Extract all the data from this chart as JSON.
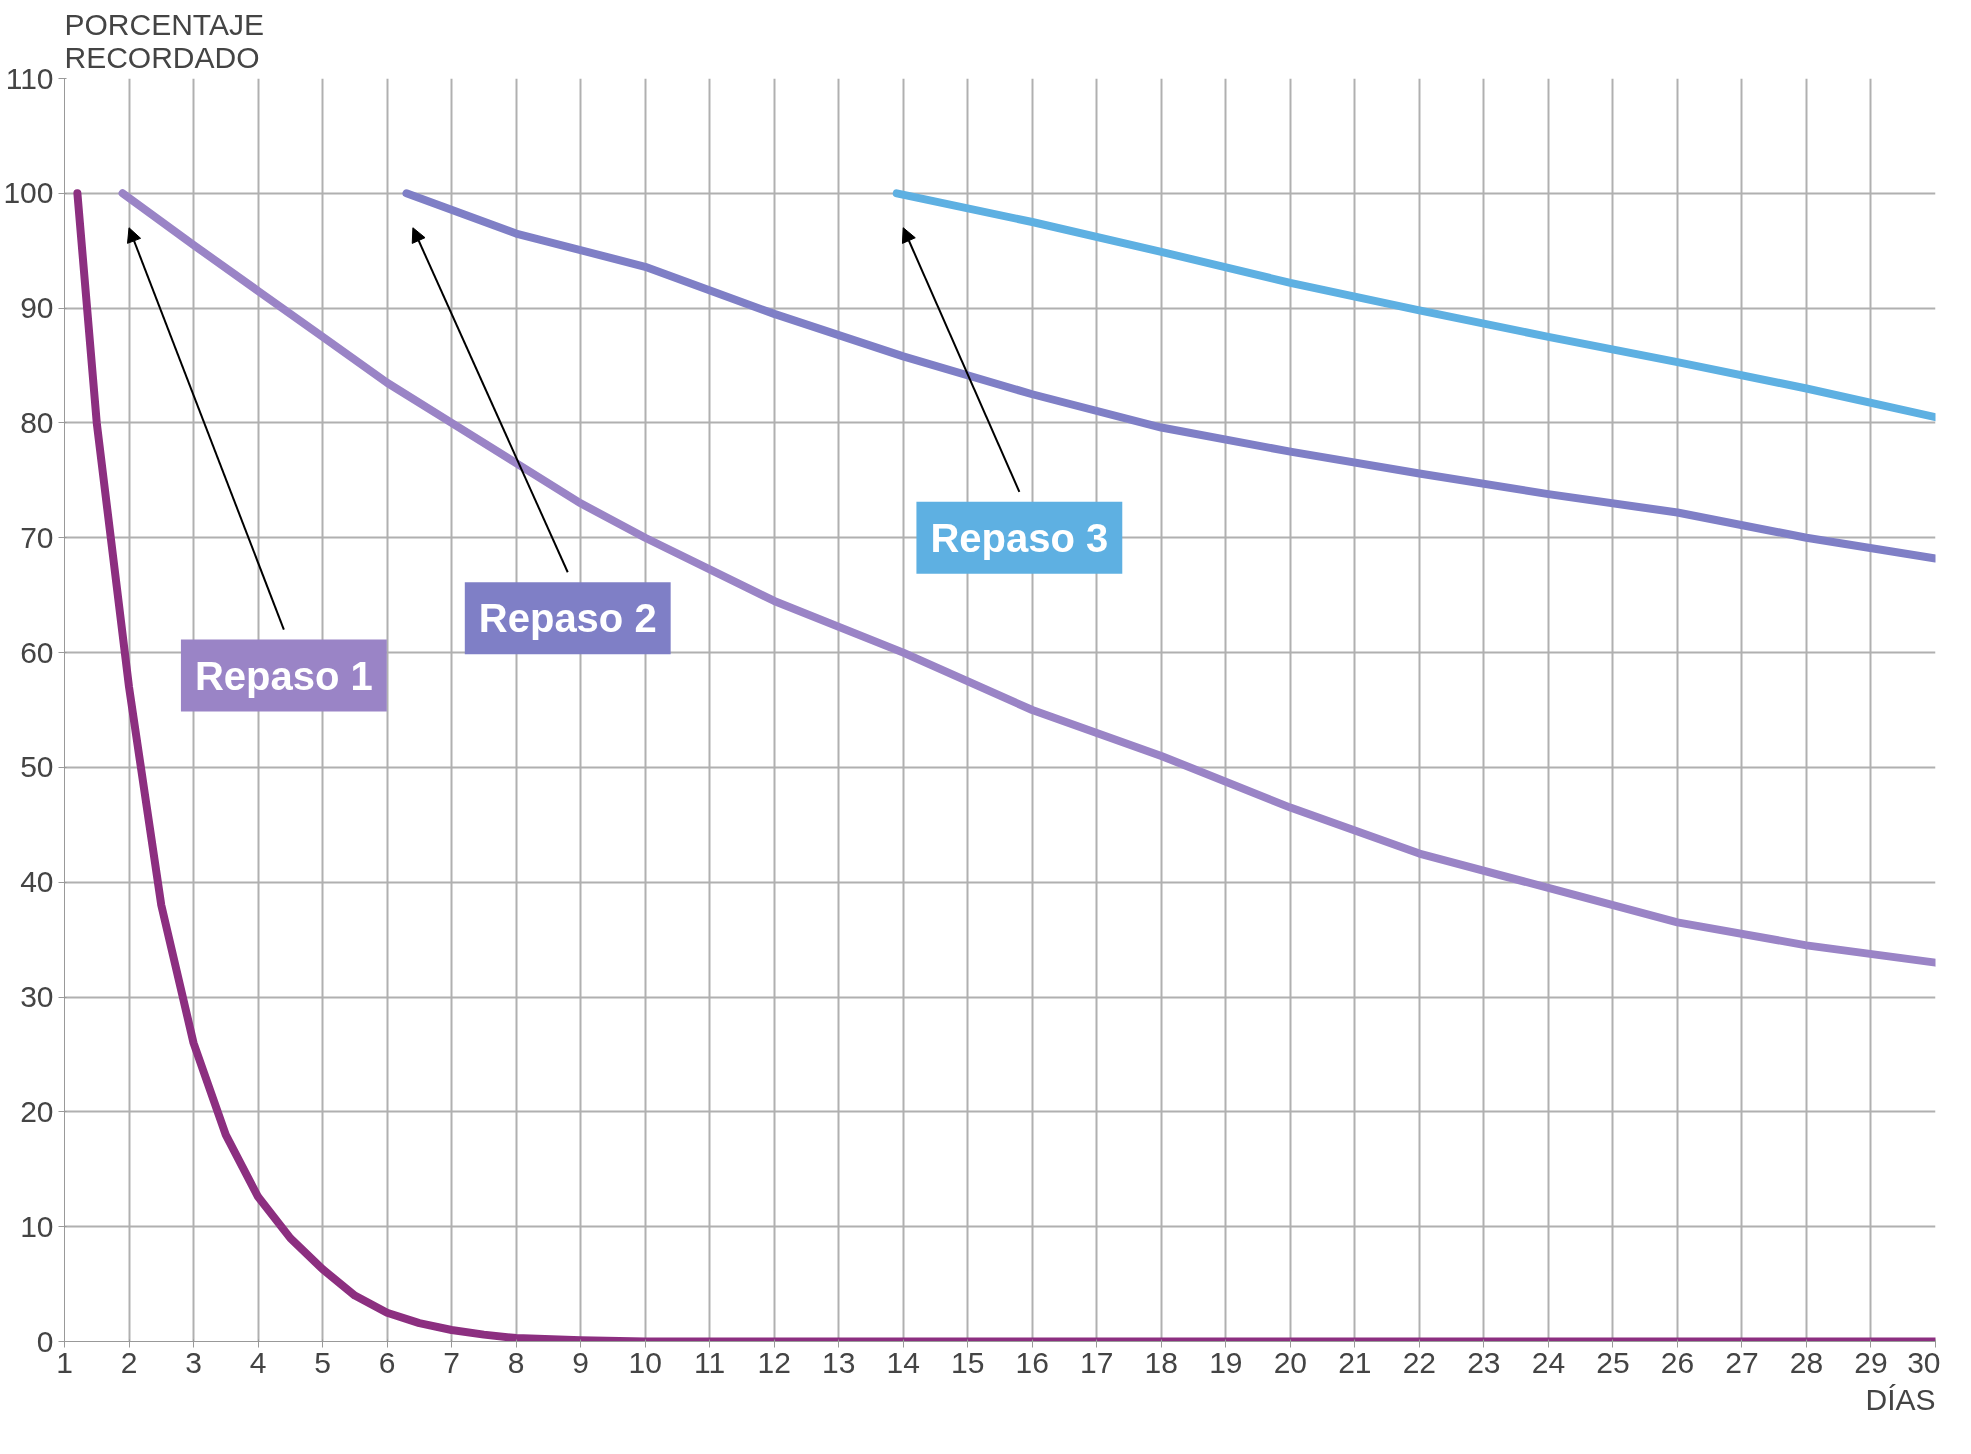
{
  "chart_data": {
    "type": "line",
    "xlabel": "DÍAS",
    "ylabel": "PORCENTAJE RECORDADO",
    "xlim": [
      1,
      30
    ],
    "ylim": [
      0,
      110
    ],
    "xticks": [
      1,
      2,
      3,
      4,
      5,
      6,
      7,
      8,
      9,
      10,
      11,
      12,
      13,
      14,
      15,
      16,
      17,
      18,
      19,
      20,
      21,
      22,
      23,
      24,
      25,
      26,
      27,
      28,
      29,
      30
    ],
    "yticks": [
      0,
      10,
      20,
      30,
      40,
      50,
      60,
      70,
      80,
      90,
      100,
      110
    ],
    "grid": true,
    "marker": "none",
    "line_style": "solid",
    "series": [
      {
        "color": "#8c2f80",
        "x": [
          1.2,
          1.5,
          2,
          2.5,
          3,
          3.5,
          4,
          4.5,
          5,
          5.5,
          6,
          6.5,
          7,
          7.5,
          8,
          9,
          10,
          12,
          15,
          20,
          25,
          30
        ],
        "values": [
          100,
          80,
          57,
          38,
          26,
          18,
          12.6,
          9,
          6.3,
          4,
          2.5,
          1.6,
          1,
          0.6,
          0.3,
          0.1,
          0,
          0,
          0,
          0,
          0,
          0
        ]
      },
      {
        "color": "#9a84c6",
        "x": [
          1.9,
          3,
          4,
          5,
          6,
          7,
          8,
          9,
          10,
          12,
          14,
          16,
          18,
          20,
          22,
          24,
          26,
          28,
          30
        ],
        "values": [
          100,
          95.5,
          91.5,
          87.5,
          83.5,
          80,
          76.5,
          73,
          70,
          64.5,
          60,
          55,
          51,
          46.5,
          42.5,
          39.5,
          36.5,
          34.5,
          33
        ]
      },
      {
        "color": "#7f7fc6",
        "x": [
          6.3,
          8,
          10,
          12,
          14,
          16,
          18,
          20,
          22,
          24,
          26,
          28,
          30
        ],
        "values": [
          100,
          96.5,
          93.6,
          89.5,
          85.8,
          82.5,
          79.6,
          77.5,
          75.6,
          73.8,
          72.2,
          70,
          68.2
        ]
      },
      {
        "color": "#5eb0e2",
        "x": [
          13.9,
          16,
          18,
          20,
          22,
          24,
          26,
          28,
          30
        ],
        "values": [
          100,
          97.5,
          94.9,
          92.2,
          89.8,
          87.5,
          85.3,
          83,
          80.5
        ]
      }
    ],
    "annotations": [
      "Repaso 1",
      "Repaso 2",
      "Repaso 3"
    ]
  }
}
